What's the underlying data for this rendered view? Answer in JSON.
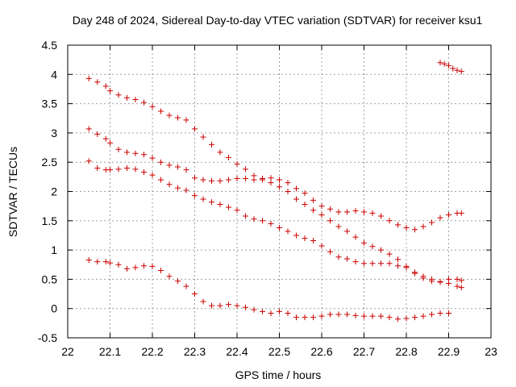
{
  "chart_data": {
    "type": "scatter",
    "title": "Day 248 of 2024, Sidereal Day-to-day VTEC variation (SDTVAR) for receiver ksu1",
    "xlabel": "GPS time / hours",
    "ylabel": "SDTVAR / TECUs",
    "xlim": [
      22,
      23
    ],
    "ylim": [
      -0.5,
      4.5
    ],
    "xticks": [
      "22",
      "22.1",
      "22.2",
      "22.3",
      "22.4",
      "22.5",
      "22.6",
      "22.7",
      "22.8",
      "22.9",
      "23"
    ],
    "yticks": [
      "-0.5",
      "0",
      "0.5",
      "1",
      "1.5",
      "2",
      "2.5",
      "3",
      "3.5",
      "4",
      "4.5"
    ],
    "grid": true,
    "marker": "plus",
    "marker_color": "#cc0000",
    "series": [
      {
        "name": "series-1",
        "points": [
          [
            22.05,
            3.93
          ],
          [
            22.07,
            3.87
          ],
          [
            22.09,
            3.8
          ],
          [
            22.1,
            3.72
          ],
          [
            22.12,
            3.65
          ],
          [
            22.14,
            3.6
          ],
          [
            22.16,
            3.57
          ],
          [
            22.18,
            3.52
          ],
          [
            22.2,
            3.45
          ],
          [
            22.22,
            3.37
          ],
          [
            22.24,
            3.3
          ],
          [
            22.26,
            3.26
          ],
          [
            22.28,
            3.22
          ],
          [
            22.3,
            3.07
          ],
          [
            22.32,
            2.93
          ],
          [
            22.34,
            2.8
          ],
          [
            22.36,
            2.67
          ],
          [
            22.38,
            2.58
          ],
          [
            22.4,
            2.47
          ],
          [
            22.42,
            2.38
          ],
          [
            22.44,
            2.27
          ],
          [
            22.46,
            2.2
          ],
          [
            22.48,
            2.15
          ],
          [
            22.5,
            2.08
          ],
          [
            22.52,
            2.0
          ],
          [
            22.54,
            1.87
          ],
          [
            22.56,
            1.78
          ],
          [
            22.58,
            1.68
          ],
          [
            22.6,
            1.6
          ],
          [
            22.62,
            1.5
          ],
          [
            22.64,
            1.4
          ],
          [
            22.66,
            1.32
          ],
          [
            22.68,
            1.22
          ],
          [
            22.7,
            1.12
          ],
          [
            22.72,
            1.06
          ],
          [
            22.74,
            1.0
          ],
          [
            22.76,
            0.93
          ],
          [
            22.78,
            0.84
          ],
          [
            22.8,
            0.72
          ],
          [
            22.82,
            0.62
          ],
          [
            22.84,
            0.55
          ],
          [
            22.86,
            0.5
          ],
          [
            22.88,
            0.46
          ],
          [
            22.9,
            0.43
          ],
          [
            22.92,
            0.38
          ],
          [
            22.93,
            0.36
          ]
        ]
      },
      {
        "name": "series-2",
        "points": [
          [
            22.05,
            3.07
          ],
          [
            22.07,
            2.98
          ],
          [
            22.09,
            2.9
          ],
          [
            22.1,
            2.83
          ],
          [
            22.12,
            2.72
          ],
          [
            22.14,
            2.67
          ],
          [
            22.16,
            2.65
          ],
          [
            22.18,
            2.63
          ],
          [
            22.2,
            2.57
          ],
          [
            22.22,
            2.5
          ],
          [
            22.24,
            2.45
          ],
          [
            22.26,
            2.42
          ],
          [
            22.28,
            2.37
          ],
          [
            22.3,
            2.23
          ],
          [
            22.32,
            2.2
          ],
          [
            22.34,
            2.18
          ],
          [
            22.36,
            2.18
          ],
          [
            22.38,
            2.2
          ],
          [
            22.4,
            2.22
          ],
          [
            22.42,
            2.22
          ],
          [
            22.44,
            2.2
          ],
          [
            22.46,
            2.22
          ],
          [
            22.48,
            2.23
          ],
          [
            22.5,
            2.2
          ],
          [
            22.52,
            2.15
          ],
          [
            22.54,
            2.05
          ],
          [
            22.56,
            1.97
          ],
          [
            22.58,
            1.85
          ],
          [
            22.6,
            1.75
          ],
          [
            22.62,
            1.7
          ],
          [
            22.64,
            1.65
          ],
          [
            22.66,
            1.65
          ],
          [
            22.68,
            1.67
          ],
          [
            22.7,
            1.65
          ],
          [
            22.72,
            1.63
          ],
          [
            22.74,
            1.58
          ],
          [
            22.76,
            1.5
          ],
          [
            22.78,
            1.43
          ],
          [
            22.8,
            1.38
          ],
          [
            22.82,
            1.35
          ],
          [
            22.84,
            1.4
          ],
          [
            22.86,
            1.47
          ],
          [
            22.88,
            1.55
          ],
          [
            22.9,
            1.6
          ],
          [
            22.92,
            1.63
          ],
          [
            22.93,
            1.63
          ]
        ]
      },
      {
        "name": "series-3",
        "points": [
          [
            22.05,
            2.52
          ],
          [
            22.07,
            2.4
          ],
          [
            22.09,
            2.37
          ],
          [
            22.1,
            2.37
          ],
          [
            22.12,
            2.38
          ],
          [
            22.14,
            2.4
          ],
          [
            22.16,
            2.38
          ],
          [
            22.18,
            2.33
          ],
          [
            22.2,
            2.28
          ],
          [
            22.22,
            2.2
          ],
          [
            22.24,
            2.12
          ],
          [
            22.26,
            2.06
          ],
          [
            22.28,
            2.02
          ],
          [
            22.3,
            1.93
          ],
          [
            22.32,
            1.87
          ],
          [
            22.34,
            1.82
          ],
          [
            22.36,
            1.78
          ],
          [
            22.38,
            1.73
          ],
          [
            22.4,
            1.68
          ],
          [
            22.42,
            1.58
          ],
          [
            22.44,
            1.53
          ],
          [
            22.46,
            1.5
          ],
          [
            22.48,
            1.45
          ],
          [
            22.5,
            1.38
          ],
          [
            22.52,
            1.32
          ],
          [
            22.54,
            1.25
          ],
          [
            22.56,
            1.2
          ],
          [
            22.58,
            1.16
          ],
          [
            22.6,
            1.07
          ],
          [
            22.62,
            0.97
          ],
          [
            22.64,
            0.88
          ],
          [
            22.66,
            0.85
          ],
          [
            22.68,
            0.8
          ],
          [
            22.7,
            0.77
          ],
          [
            22.72,
            0.77
          ],
          [
            22.74,
            0.77
          ],
          [
            22.76,
            0.77
          ],
          [
            22.78,
            0.73
          ],
          [
            22.8,
            0.7
          ],
          [
            22.82,
            0.6
          ],
          [
            22.84,
            0.52
          ],
          [
            22.86,
            0.47
          ],
          [
            22.88,
            0.45
          ],
          [
            22.9,
            0.5
          ],
          [
            22.92,
            0.5
          ],
          [
            22.93,
            0.48
          ]
        ]
      },
      {
        "name": "series-4",
        "points": [
          [
            22.05,
            0.83
          ],
          [
            22.07,
            0.8
          ],
          [
            22.09,
            0.8
          ],
          [
            22.1,
            0.78
          ],
          [
            22.12,
            0.75
          ],
          [
            22.14,
            0.68
          ],
          [
            22.16,
            0.7
          ],
          [
            22.18,
            0.73
          ],
          [
            22.2,
            0.72
          ],
          [
            22.22,
            0.65
          ],
          [
            22.24,
            0.55
          ],
          [
            22.26,
            0.47
          ],
          [
            22.28,
            0.38
          ],
          [
            22.3,
            0.25
          ],
          [
            22.32,
            0.12
          ],
          [
            22.34,
            0.05
          ],
          [
            22.36,
            0.05
          ],
          [
            22.38,
            0.07
          ],
          [
            22.4,
            0.05
          ],
          [
            22.42,
            0.02
          ],
          [
            22.44,
            -0.02
          ],
          [
            22.46,
            -0.05
          ],
          [
            22.48,
            -0.08
          ],
          [
            22.5,
            -0.05
          ],
          [
            22.52,
            -0.08
          ],
          [
            22.54,
            -0.15
          ],
          [
            22.56,
            -0.15
          ],
          [
            22.58,
            -0.15
          ],
          [
            22.6,
            -0.13
          ],
          [
            22.62,
            -0.1
          ],
          [
            22.64,
            -0.1
          ],
          [
            22.66,
            -0.1
          ],
          [
            22.68,
            -0.12
          ],
          [
            22.7,
            -0.13
          ],
          [
            22.72,
            -0.13
          ],
          [
            22.74,
            -0.13
          ],
          [
            22.76,
            -0.15
          ],
          [
            22.78,
            -0.18
          ],
          [
            22.8,
            -0.17
          ],
          [
            22.82,
            -0.15
          ],
          [
            22.84,
            -0.13
          ],
          [
            22.86,
            -0.1
          ],
          [
            22.88,
            -0.08
          ],
          [
            22.9,
            -0.08
          ]
        ]
      },
      {
        "name": "series-5",
        "points": [
          [
            22.88,
            4.2
          ],
          [
            22.89,
            4.18
          ],
          [
            22.9,
            4.15
          ],
          [
            22.91,
            4.1
          ],
          [
            22.92,
            4.07
          ],
          [
            22.93,
            4.05
          ]
        ]
      }
    ]
  }
}
